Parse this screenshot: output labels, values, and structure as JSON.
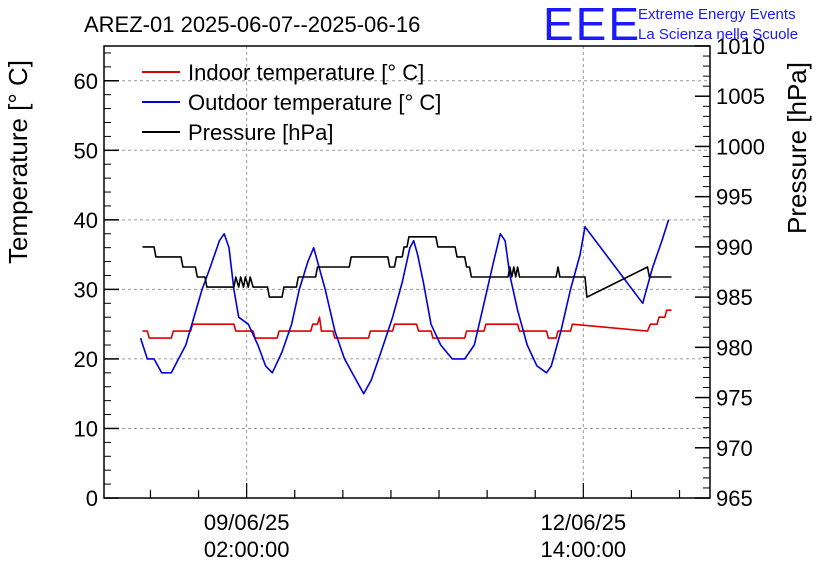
{
  "chart_data": {
    "type": "line",
    "title": "AREZ-01 2025-06-07--2025-06-16",
    "logo": {
      "mark": "EEE",
      "line1": "Extreme Energy Events",
      "line2": "La Scienza nelle Scuole",
      "color": "#1a1aff"
    },
    "ylabel_left": "Temperature [° C]",
    "ylabel_right": "Pressure [hPa]",
    "ylim_left": [
      0,
      65
    ],
    "ylim_right": [
      965,
      1010
    ],
    "yticks_left": [
      0,
      10,
      20,
      30,
      40,
      50,
      60
    ],
    "yticks_right": [
      965,
      970,
      975,
      980,
      985,
      990,
      995,
      1000,
      1005,
      1010
    ],
    "xlim_days": [
      6.6,
      12.9
    ],
    "x_tick_labels": [
      {
        "x": 8.083,
        "line1": "09/06/25",
        "line2": "02:00:00"
      },
      {
        "x": 11.583,
        "line1": "12/06/25",
        "line2": "14:00:00"
      }
    ],
    "grid": true,
    "legend_position": "top-left",
    "series": [
      {
        "name": "Indoor temperature [° C]",
        "axis": "left",
        "color": "#dd0000",
        "points": [
          [
            7.0,
            24
          ],
          [
            7.05,
            24
          ],
          [
            7.07,
            23
          ],
          [
            7.3,
            23
          ],
          [
            7.32,
            24
          ],
          [
            7.5,
            24
          ],
          [
            7.52,
            25
          ],
          [
            7.95,
            25
          ],
          [
            7.97,
            24
          ],
          [
            8.15,
            24
          ],
          [
            8.17,
            23
          ],
          [
            8.4,
            23
          ],
          [
            8.42,
            24
          ],
          [
            8.75,
            24
          ],
          [
            8.77,
            25
          ],
          [
            8.82,
            25
          ],
          [
            8.84,
            26
          ],
          [
            8.86,
            24
          ],
          [
            8.98,
            24
          ],
          [
            9.0,
            23
          ],
          [
            9.35,
            23
          ],
          [
            9.37,
            24
          ],
          [
            9.6,
            24
          ],
          [
            9.62,
            25
          ],
          [
            9.85,
            25
          ],
          [
            9.87,
            24
          ],
          [
            10.0,
            24
          ],
          [
            10.02,
            23
          ],
          [
            10.35,
            23
          ],
          [
            10.37,
            24
          ],
          [
            10.55,
            24
          ],
          [
            10.57,
            25
          ],
          [
            10.9,
            25
          ],
          [
            10.92,
            24
          ],
          [
            11.2,
            24
          ],
          [
            11.22,
            23
          ],
          [
            11.3,
            23
          ],
          [
            11.32,
            24
          ],
          [
            11.45,
            24
          ],
          [
            11.47,
            25
          ],
          [
            12.25,
            24
          ],
          [
            12.28,
            25
          ],
          [
            12.35,
            25
          ],
          [
            12.37,
            26
          ],
          [
            12.43,
            26
          ],
          [
            12.45,
            27
          ],
          [
            12.5,
            27
          ]
        ]
      },
      {
        "name": "Outdoor temperature [° C]",
        "axis": "left",
        "color": "#0000dd",
        "points": [
          [
            6.98,
            23
          ],
          [
            7.05,
            20
          ],
          [
            7.12,
            20
          ],
          [
            7.2,
            18
          ],
          [
            7.3,
            18
          ],
          [
            7.45,
            22
          ],
          [
            7.62,
            30
          ],
          [
            7.7,
            33
          ],
          [
            7.8,
            37
          ],
          [
            7.85,
            38
          ],
          [
            7.9,
            36
          ],
          [
            7.95,
            30
          ],
          [
            8.0,
            26
          ],
          [
            8.1,
            25
          ],
          [
            8.2,
            22
          ],
          [
            8.28,
            19
          ],
          [
            8.35,
            18
          ],
          [
            8.45,
            21
          ],
          [
            8.55,
            25
          ],
          [
            8.63,
            30
          ],
          [
            8.72,
            34
          ],
          [
            8.78,
            36
          ],
          [
            8.82,
            34
          ],
          [
            8.9,
            30
          ],
          [
            9.0,
            24
          ],
          [
            9.1,
            20
          ],
          [
            9.22,
            17
          ],
          [
            9.3,
            15
          ],
          [
            9.38,
            17
          ],
          [
            9.48,
            21
          ],
          [
            9.6,
            26
          ],
          [
            9.7,
            31
          ],
          [
            9.78,
            36
          ],
          [
            9.82,
            37
          ],
          [
            9.86,
            35
          ],
          [
            9.92,
            31
          ],
          [
            10.0,
            25
          ],
          [
            10.1,
            22
          ],
          [
            10.22,
            20
          ],
          [
            10.35,
            20
          ],
          [
            10.45,
            22
          ],
          [
            10.55,
            28
          ],
          [
            10.65,
            34
          ],
          [
            10.72,
            38
          ],
          [
            10.77,
            37
          ],
          [
            10.82,
            32
          ],
          [
            10.9,
            27
          ],
          [
            11.0,
            22
          ],
          [
            11.1,
            19
          ],
          [
            11.2,
            18
          ],
          [
            11.25,
            19
          ],
          [
            11.35,
            24
          ],
          [
            11.45,
            30
          ],
          [
            11.55,
            35
          ],
          [
            11.6,
            39
          ],
          [
            12.2,
            28
          ],
          [
            12.3,
            33
          ],
          [
            12.4,
            37
          ],
          [
            12.47,
            40
          ]
        ]
      },
      {
        "name": "Pressure [hPa]",
        "axis": "right",
        "color": "#000000",
        "points": [
          [
            7.0,
            990
          ],
          [
            7.12,
            990
          ],
          [
            7.14,
            989
          ],
          [
            7.4,
            989
          ],
          [
            7.42,
            988
          ],
          [
            7.55,
            988
          ],
          [
            7.57,
            987
          ],
          [
            7.65,
            987
          ],
          [
            7.67,
            986
          ],
          [
            7.95,
            986
          ],
          [
            7.97,
            987
          ],
          [
            8.0,
            986
          ],
          [
            8.02,
            987
          ],
          [
            8.05,
            986
          ],
          [
            8.07,
            987
          ],
          [
            8.1,
            986
          ],
          [
            8.12,
            987
          ],
          [
            8.15,
            986
          ],
          [
            8.3,
            986
          ],
          [
            8.32,
            985
          ],
          [
            8.45,
            985
          ],
          [
            8.47,
            986
          ],
          [
            8.6,
            986
          ],
          [
            8.62,
            987
          ],
          [
            8.8,
            987
          ],
          [
            8.82,
            988
          ],
          [
            9.15,
            988
          ],
          [
            9.17,
            989
          ],
          [
            9.55,
            989
          ],
          [
            9.57,
            988
          ],
          [
            9.62,
            988
          ],
          [
            9.64,
            989
          ],
          [
            9.7,
            989
          ],
          [
            9.72,
            990
          ],
          [
            9.75,
            990
          ],
          [
            9.77,
            991
          ],
          [
            10.05,
            991
          ],
          [
            10.07,
            990
          ],
          [
            10.25,
            990
          ],
          [
            10.27,
            989
          ],
          [
            10.35,
            989
          ],
          [
            10.37,
            988
          ],
          [
            10.4,
            988
          ],
          [
            10.42,
            987
          ],
          [
            10.8,
            987
          ],
          [
            10.82,
            988
          ],
          [
            10.84,
            987
          ],
          [
            10.86,
            988
          ],
          [
            10.88,
            987
          ],
          [
            10.9,
            988
          ],
          [
            10.92,
            987
          ],
          [
            11.1,
            987
          ],
          [
            11.3,
            987
          ],
          [
            11.32,
            988
          ],
          [
            11.34,
            987
          ],
          [
            11.6,
            987
          ],
          [
            11.62,
            985
          ],
          [
            12.25,
            988
          ],
          [
            12.27,
            987
          ],
          [
            12.5,
            987
          ]
        ]
      }
    ]
  }
}
